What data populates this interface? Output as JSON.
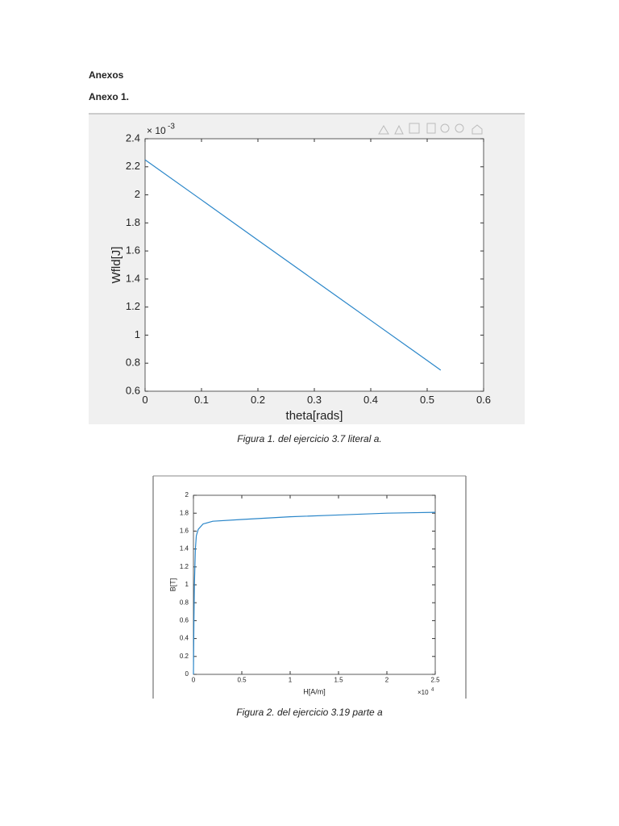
{
  "document": {
    "heading": "Anexos",
    "subheading": "Anexo 1.",
    "captions": [
      "Figura 1. del ejercicio 3.7 literal a.",
      "Figura 2. del ejercicio 3.19 parte a"
    ]
  },
  "chart_data": [
    {
      "type": "line",
      "x_label": "theta[rads]",
      "y_label": "Wfld[J]",
      "y_multiplier": {
        "base": "× 10",
        "exponent": "-3"
      },
      "x": [
        0,
        0.1,
        0.2,
        0.3,
        0.4,
        0.5,
        0.524
      ],
      "values": [
        2.25,
        1.964,
        1.677,
        1.391,
        1.105,
        0.819,
        0.75
      ],
      "color": "#2a86c9",
      "xlim": [
        0,
        0.6
      ],
      "xticks": [
        0,
        0.1,
        0.2,
        0.3,
        0.4,
        0.5,
        0.6
      ],
      "ylim": [
        0.6,
        2.4
      ],
      "yticks": [
        0.6,
        0.8,
        1,
        1.2,
        1.4,
        1.6,
        1.8,
        2,
        2.2,
        2.4
      ]
    },
    {
      "type": "line",
      "x_label": "H[A/m]",
      "y_label": "B[T]",
      "x_multiplier": {
        "base": "×10",
        "exponent": "4"
      },
      "x": [
        0,
        0.005,
        0.01,
        0.02,
        0.03,
        0.05,
        0.1,
        0.2,
        0.5,
        1,
        1.5,
        2,
        2.5
      ],
      "values": [
        0,
        0.6,
        1.0,
        1.4,
        1.55,
        1.62,
        1.68,
        1.71,
        1.73,
        1.76,
        1.78,
        1.8,
        1.81
      ],
      "color": "#2a86c9",
      "xlim": [
        0,
        2.5
      ],
      "xticks": [
        0,
        0.5,
        1,
        1.5,
        2,
        2.5
      ],
      "ylim": [
        0,
        2
      ],
      "yticks": [
        0,
        0.2,
        0.4,
        0.6,
        0.8,
        1,
        1.2,
        1.4,
        1.6,
        1.8,
        2
      ]
    }
  ]
}
